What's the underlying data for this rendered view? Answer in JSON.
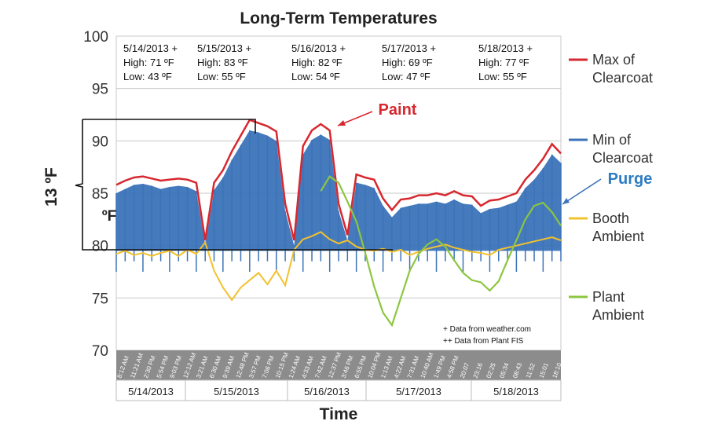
{
  "chart_data": {
    "type": "line",
    "title": "Long-Term Temperatures",
    "xlabel": "Time",
    "ylabel": "ºF",
    "ylim": [
      70,
      100
    ],
    "yticks": [
      100,
      95,
      90,
      85,
      80,
      75,
      70
    ],
    "bracket_label": "13 ºF",
    "days": [
      "5/14/2013",
      "5/15/2013",
      "5/16/2013",
      "5/17/2013",
      "5/18/2013"
    ],
    "time_ticks": [
      "8:12 AM",
      "11:21 AM",
      "2:30 PM",
      "5:54 PM",
      "9:03 PM",
      "12:12 AM",
      "3:21 AM",
      "6:30 AM",
      "9:39 AM",
      "12:48 PM",
      "3:57 PM",
      "7:06 PM",
      "10:15 PM",
      "1:24 AM",
      "4:33 AM",
      "7:42 AM",
      "12:37 PM",
      "3:46 PM",
      "6:55 PM",
      "10:04 PM",
      "1:13 AM",
      "4:22 AM",
      "7:31 AM",
      "10:40 AM",
      "1:49 PM",
      "4:58 PM",
      "20:07",
      "23:16",
      "02:25",
      "05:34",
      "08:43",
      "11:52",
      "15:01",
      "18:10"
    ],
    "weather": [
      {
        "date": "5/14/2013 +",
        "high": "High: 71 ºF",
        "low": "Low: 43 ºF"
      },
      {
        "date": "5/15/2013 +",
        "high": "High: 83 ºF",
        "low": "Low: 55 ºF"
      },
      {
        "date": "5/16/2013 +",
        "high": "High: 82 ºF",
        "low": "Low: 54 ºF"
      },
      {
        "date": "5/17/2013 +",
        "high": "High: 69 ºF",
        "low": "Low: 47 ºF"
      },
      {
        "date": "5/18/2013 +",
        "high": "High: 77 ºF",
        "low": "Low: 55 ºF"
      }
    ],
    "annotations": {
      "paint": "Paint",
      "purge": "Purge",
      "note1": "+   Data from weather.com",
      "note2": "++ Data from Plant FIS"
    },
    "x_range": [
      0,
      100
    ],
    "series": [
      {
        "name": "Max of Clearcoat",
        "color": "#d7282f",
        "x": [
          0,
          2,
          4,
          6,
          8,
          10,
          12,
          14,
          16,
          18,
          20,
          22,
          24,
          26,
          28,
          30,
          32,
          34,
          36,
          38,
          40,
          42,
          44,
          46,
          48,
          50,
          52,
          54,
          56,
          58,
          60,
          62,
          64,
          66,
          68,
          70,
          72,
          74,
          76,
          78,
          80,
          82,
          84,
          86,
          88,
          90,
          92,
          94,
          96,
          98,
          100
        ],
        "y": [
          85.8,
          86.2,
          86.5,
          86.6,
          86.4,
          86.2,
          86.3,
          86.4,
          86.3,
          86.0,
          80.5,
          86.0,
          87.2,
          89.0,
          90.5,
          92.0,
          91.7,
          91.4,
          90.9,
          84.0,
          80.5,
          89.5,
          91.0,
          91.6,
          91.0,
          84.0,
          81.0,
          86.8,
          86.5,
          86.3,
          84.5,
          83.4,
          84.4,
          84.5,
          84.8,
          84.8,
          85.0,
          84.8,
          85.2,
          84.8,
          84.7,
          83.8,
          84.3,
          84.4,
          84.7,
          85.0,
          86.3,
          87.2,
          88.3,
          89.7,
          88.8
        ]
      },
      {
        "name": "Min of Clearcoat",
        "color": "#3b73b9",
        "x": [
          0,
          2,
          4,
          6,
          8,
          10,
          12,
          14,
          16,
          18,
          20,
          22,
          24,
          26,
          28,
          30,
          32,
          34,
          36,
          38,
          40,
          42,
          44,
          46,
          48,
          50,
          52,
          54,
          56,
          58,
          60,
          62,
          64,
          66,
          68,
          70,
          72,
          74,
          76,
          78,
          80,
          82,
          84,
          86,
          88,
          90,
          92,
          94,
          96,
          98,
          100
        ],
        "y": [
          85.0,
          85.4,
          85.8,
          85.9,
          85.7,
          85.4,
          85.6,
          85.7,
          85.6,
          85.2,
          80.0,
          85.3,
          86.5,
          88.2,
          89.6,
          91.0,
          90.8,
          90.5,
          90.0,
          83.3,
          80.0,
          88.7,
          90.1,
          90.6,
          90.1,
          83.3,
          80.5,
          86.0,
          85.8,
          85.5,
          83.8,
          82.7,
          83.6,
          83.8,
          84.0,
          84.0,
          84.2,
          84.0,
          84.4,
          84.0,
          83.9,
          83.1,
          83.5,
          83.6,
          83.9,
          84.2,
          85.5,
          86.3,
          87.4,
          88.7,
          87.9
        ]
      },
      {
        "name": "Booth Ambient",
        "color": "#f2c12e",
        "x": [
          0,
          2,
          4,
          6,
          8,
          10,
          12,
          14,
          16,
          18,
          20,
          22,
          24,
          26,
          28,
          30,
          32,
          34,
          36,
          38,
          40,
          42,
          44,
          46,
          48,
          50,
          52,
          54,
          56,
          58,
          60,
          62,
          64,
          66,
          68,
          70,
          72,
          74,
          76,
          78,
          80,
          82,
          84,
          86,
          88,
          90,
          92,
          94,
          96,
          98,
          100
        ],
        "y": [
          79.2,
          79.5,
          79.1,
          79.3,
          79.0,
          79.3,
          79.5,
          79.0,
          79.6,
          79.2,
          80.3,
          77.6,
          76.0,
          74.8,
          76.0,
          76.7,
          77.4,
          76.3,
          77.6,
          76.2,
          79.6,
          80.6,
          80.9,
          81.3,
          80.6,
          80.2,
          80.5,
          79.9,
          79.6,
          79.5,
          79.7,
          79.4,
          79.6,
          79.1,
          79.4,
          79.7,
          79.9,
          80.1,
          79.8,
          79.6,
          79.4,
          79.3,
          79.1,
          79.6,
          79.8,
          80.0,
          80.2,
          80.4,
          80.6,
          80.8,
          80.5
        ]
      },
      {
        "name": "Plant Ambient",
        "color": "#8cc63f",
        "x": [
          46,
          48,
          50,
          52,
          54,
          56,
          58,
          60,
          62,
          64,
          66,
          68,
          70,
          72,
          74,
          76,
          78,
          80,
          82,
          84,
          86,
          88,
          90,
          92,
          94,
          96,
          98,
          100
        ],
        "y": [
          85.2,
          86.6,
          86.0,
          84.2,
          82.3,
          79.3,
          76.1,
          73.6,
          72.4,
          75.0,
          77.6,
          79.2,
          80.1,
          80.6,
          79.9,
          78.6,
          77.4,
          76.7,
          76.5,
          75.7,
          76.6,
          78.6,
          80.5,
          82.5,
          83.8,
          84.1,
          83.2,
          81.9
        ]
      }
    ]
  }
}
